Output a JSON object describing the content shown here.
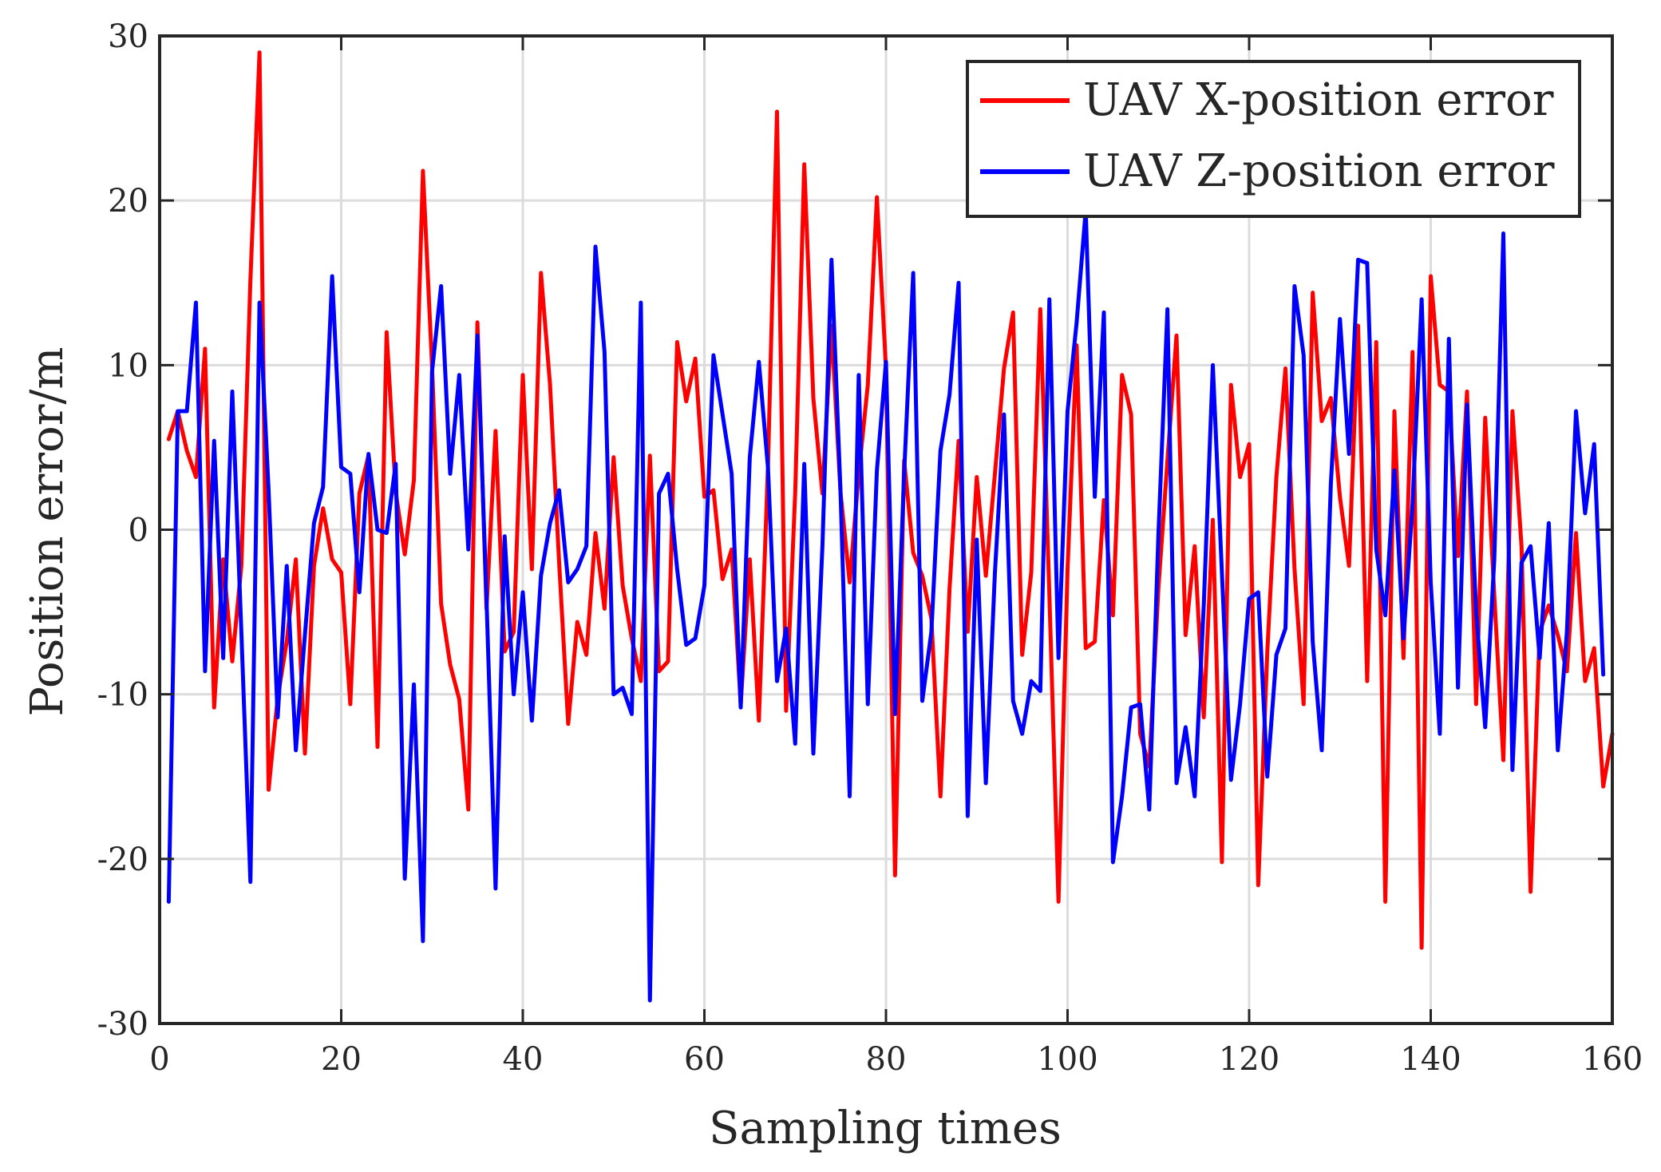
{
  "chart_data": {
    "type": "line",
    "title": "",
    "xlabel": "Sampling times",
    "ylabel": "Position error/m",
    "xlim": [
      0,
      160
    ],
    "ylim": [
      -30,
      30
    ],
    "xticks": [
      0,
      20,
      40,
      60,
      80,
      100,
      120,
      140,
      160
    ],
    "yticks": [
      -30,
      -20,
      -10,
      0,
      10,
      20,
      30
    ],
    "xtick_labels": [
      "0",
      "20",
      "40",
      "60",
      "80",
      "100",
      "120",
      "140",
      "160"
    ],
    "ytick_labels": [
      "-30",
      "-20",
      "-10",
      "0",
      "10",
      "20",
      "30"
    ],
    "grid": true,
    "legend_position": "top-right",
    "series": [
      {
        "name": "UAV X-position error",
        "color": "#ff0000",
        "x_start": 1,
        "values": [
          5.5,
          7.2,
          4.8,
          3.2,
          11,
          -10.8,
          -1.8,
          -8,
          -2.2,
          15.2,
          29,
          -15.8,
          -10.2,
          -6.8,
          -1.8,
          -13.6,
          -2.2,
          1.3,
          -1.8,
          -2.6,
          -10.6,
          2.2,
          4.5,
          -13.2,
          12,
          2.3,
          -1.5,
          3,
          21.8,
          10,
          -4.5,
          -8.2,
          -10.3,
          -17,
          12.6,
          -4.8,
          6,
          -7.4,
          -6.2,
          9.4,
          -2.4,
          15.6,
          8.8,
          -2,
          -11.8,
          -5.6,
          -7.6,
          -0.2,
          -4.8,
          4.4,
          -3.4,
          -6.6,
          -9.2,
          4.5,
          -8.6,
          -8,
          11.4,
          7.8,
          10.4,
          2,
          2.4,
          -3,
          -1.2,
          -10.6,
          -1.8,
          -11.6,
          3.8,
          25.4,
          -11,
          2.2,
          22.2,
          8,
          2.2,
          12.4,
          2.2,
          -3.2,
          3.4,
          8.8,
          20.2,
          9.8,
          -21,
          4.2,
          -1.4,
          -2.8,
          -5.4,
          -16.2,
          -3.6,
          5.4,
          -6.2,
          3.2,
          -2.8,
          3.4,
          9.8,
          13.2,
          -7.6,
          -2.6,
          13.4,
          -4,
          -22.6,
          -2.4,
          11.2,
          -7.2,
          -6.8,
          1.8,
          -5.2,
          9.4,
          7,
          -12.4,
          -14.4,
          -3.6,
          4.2,
          11.8,
          -6.4,
          -1,
          -11.4,
          0.6,
          -20.2,
          8.8,
          3.2,
          5.2,
          -21.6,
          -7.4,
          3.2,
          9.8,
          -2.4,
          -10.6,
          14.4,
          6.6,
          8,
          2,
          -2.2,
          12.4,
          -9.2,
          11.4,
          -22.6,
          7.2,
          -7.8,
          10.8,
          -25.4,
          15.4,
          8.8,
          8.4,
          -1.6,
          8.4,
          -10.6,
          6.8,
          -4,
          -14,
          7.2,
          -1,
          -22,
          -6.2,
          -4.6,
          -6.4,
          -8.6,
          -0.2,
          -9.2,
          -7.2,
          -15.6,
          -12.4
        ]
      },
      {
        "name": "UAV Z-position error",
        "color": "#0000ff",
        "x_start": 1,
        "values": [
          -22.6,
          7.2,
          7.2,
          13.8,
          -8.6,
          5.4,
          -7.8,
          8.4,
          -6.2,
          -21.4,
          13.8,
          2.4,
          -11.4,
          -2.2,
          -13.4,
          -6.4,
          0.4,
          2.6,
          15.4,
          3.8,
          3.4,
          -3.8,
          4.6,
          0,
          -0.2,
          4,
          -21.2,
          -9.4,
          -25,
          9.6,
          14.8,
          3.4,
          9.4,
          -1.2,
          11.8,
          -4.2,
          -21.8,
          -0.4,
          -10,
          -3.8,
          -11.6,
          -2.8,
          0.4,
          2.4,
          -3.2,
          -2.4,
          -1,
          17.2,
          10.8,
          -10,
          -9.6,
          -11.2,
          13.8,
          -28.6,
          2.2,
          3.4,
          -2.4,
          -7,
          -6.6,
          -3.4,
          10.6,
          7,
          3.4,
          -10.8,
          4.4,
          10.2,
          3.8,
          -9.2,
          -6,
          -13,
          4,
          -13.6,
          -1,
          16.4,
          2.2,
          -16.2,
          9.4,
          -10.6,
          3.6,
          10.2,
          -11.2,
          3.4,
          15.6,
          -10.4,
          -6.2,
          4.8,
          8.2,
          15,
          -17.4,
          -0.6,
          -15.4,
          -2.6,
          7,
          -10.4,
          -12.4,
          -9.2,
          -9.8,
          14,
          -7.8,
          7.2,
          12.6,
          19.4,
          2,
          13.2,
          -20.2,
          -16.2,
          -10.8,
          -10.6,
          -17,
          -0.4,
          13.4,
          -15.4,
          -12,
          -16.2,
          -4.6,
          10,
          -2.6,
          -15.2,
          -10.6,
          -4.2,
          -3.8,
          -15,
          -7.6,
          -6,
          14.8,
          10.6,
          -6.8,
          -13.4,
          2.8,
          12.8,
          4.6,
          16.4,
          16.2,
          -1.2,
          -5.2,
          3.6,
          -6.6,
          1.6,
          14,
          -3.2,
          -12.4,
          11.6,
          -9.6,
          7.6,
          -5,
          -12,
          -1.8,
          18,
          -14.6,
          -2,
          -1,
          -7.8,
          0.4,
          -13.4,
          -6.2,
          7.2,
          1,
          5.2,
          -8.8
        ]
      }
    ]
  }
}
